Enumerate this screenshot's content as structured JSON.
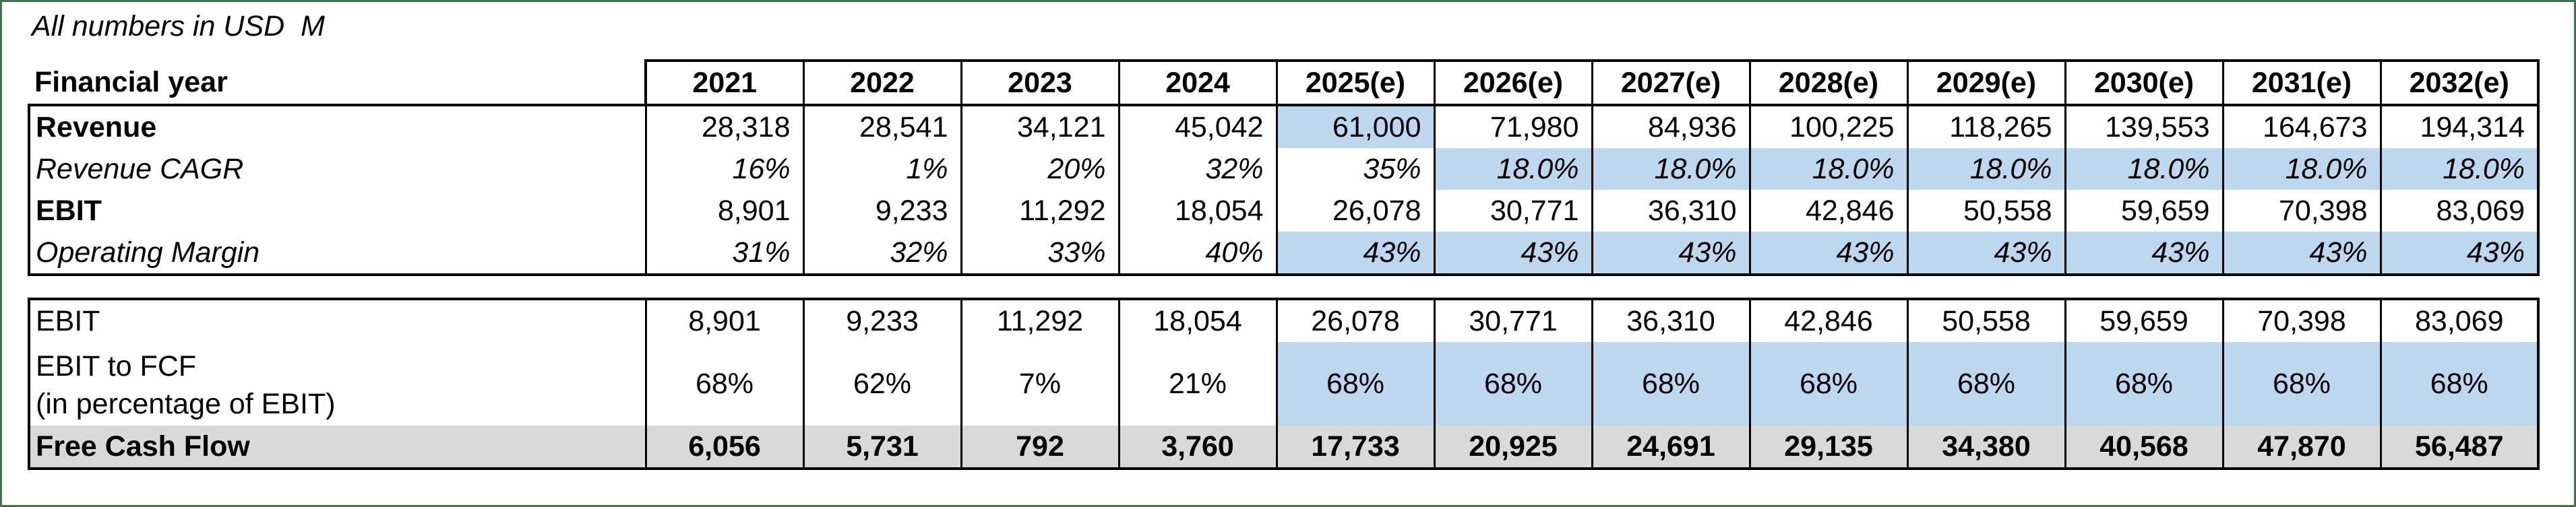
{
  "title": "All numbers in USD  M",
  "colors": {
    "highlight_blue": "#BDD7EE",
    "row_gray": "#D9D9D9",
    "frame_green": "#41714D",
    "border_black": "#000000"
  },
  "table1": {
    "header_label": "Financial year",
    "years": [
      "2021",
      "2022",
      "2023",
      "2024",
      "2025(e)",
      "2026(e)",
      "2027(e)",
      "2028(e)",
      "2029(e)",
      "2030(e)",
      "2031(e)",
      "2032(e)"
    ],
    "rows": [
      {
        "label": "Revenue",
        "style": "bold",
        "values": [
          "28,318",
          "28,541",
          "34,121",
          "45,042",
          "61,000",
          "71,980",
          "84,936",
          "100,225",
          "118,265",
          "139,553",
          "164,673",
          "194,314"
        ],
        "highlight": [
          0,
          0,
          0,
          0,
          1,
          0,
          0,
          0,
          0,
          0,
          0,
          0
        ]
      },
      {
        "label": "Revenue CAGR",
        "style": "italic",
        "values": [
          "16%",
          "1%",
          "20%",
          "32%",
          "35%",
          "18.0%",
          "18.0%",
          "18.0%",
          "18.0%",
          "18.0%",
          "18.0%",
          "18.0%"
        ],
        "highlight": [
          0,
          0,
          0,
          0,
          0,
          1,
          1,
          1,
          1,
          1,
          1,
          1
        ]
      },
      {
        "label": "EBIT",
        "style": "bold",
        "values": [
          "8,901",
          "9,233",
          "11,292",
          "18,054",
          "26,078",
          "30,771",
          "36,310",
          "42,846",
          "50,558",
          "59,659",
          "70,398",
          "83,069"
        ],
        "highlight": [
          0,
          0,
          0,
          0,
          0,
          0,
          0,
          0,
          0,
          0,
          0,
          0
        ]
      },
      {
        "label": "Operating Margin",
        "style": "italic",
        "values": [
          "31%",
          "32%",
          "33%",
          "40%",
          "43%",
          "43%",
          "43%",
          "43%",
          "43%",
          "43%",
          "43%",
          "43%"
        ],
        "highlight": [
          0,
          0,
          0,
          0,
          1,
          1,
          1,
          1,
          1,
          1,
          1,
          1
        ]
      }
    ]
  },
  "table2": {
    "rows": [
      {
        "label": "EBIT",
        "style": "regular",
        "values": [
          "8,901",
          "9,233",
          "11,292",
          "18,054",
          "26,078",
          "30,771",
          "36,310",
          "42,846",
          "50,558",
          "59,659",
          "70,398",
          "83,069"
        ],
        "highlight": [
          0,
          0,
          0,
          0,
          0,
          0,
          0,
          0,
          0,
          0,
          0,
          0
        ],
        "gray_row": false
      },
      {
        "label": "EBIT to FCF",
        "label_line2": "(in percentage of EBIT)",
        "style": "regular",
        "values": [
          "68%",
          "62%",
          "7%",
          "21%",
          "68%",
          "68%",
          "68%",
          "68%",
          "68%",
          "68%",
          "68%",
          "68%"
        ],
        "highlight": [
          0,
          0,
          0,
          0,
          1,
          1,
          1,
          1,
          1,
          1,
          1,
          1
        ],
        "gray_row": false
      },
      {
        "label": "Free Cash Flow",
        "style": "bold",
        "values": [
          "6,056",
          "5,731",
          "792",
          "3,760",
          "17,733",
          "20,925",
          "24,691",
          "29,135",
          "34,380",
          "40,568",
          "47,870",
          "56,487"
        ],
        "highlight": [
          0,
          0,
          0,
          0,
          0,
          0,
          0,
          0,
          0,
          0,
          0,
          0
        ],
        "gray_row": true
      }
    ]
  }
}
